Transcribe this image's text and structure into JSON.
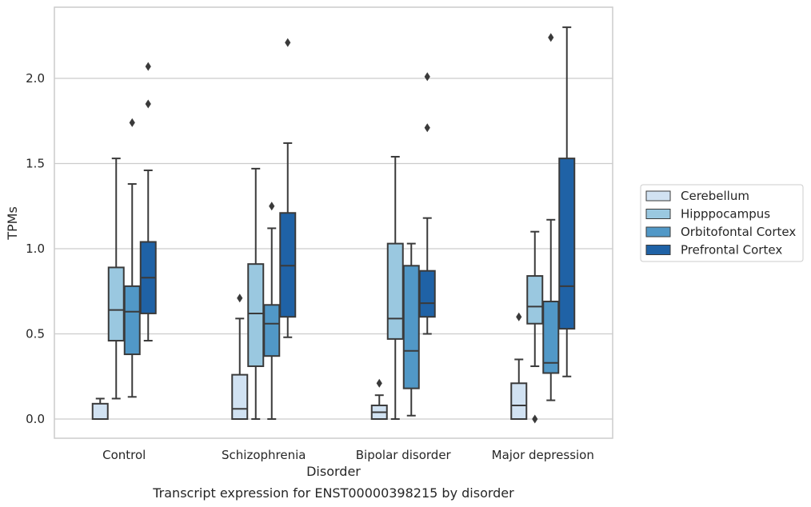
{
  "chart_data": {
    "type": "boxplot",
    "caption": "Transcript expression for ENST00000398215 by disorder",
    "xlabel": "Disorder",
    "ylabel": "TPMs",
    "ylim": [
      -0.11,
      2.41
    ],
    "yticks": [
      "0.0",
      "0.5",
      "1.0",
      "1.5",
      "2.0"
    ],
    "grid": "horizontal",
    "legend_position": "right",
    "categories": [
      "Control",
      "Schizophrenia",
      "Bipolar disorder",
      "Major depression"
    ],
    "series": [
      {
        "name": "Cerebellum",
        "color": "#d1e2f2",
        "boxes": [
          {
            "whislo": 0.0,
            "q1": 0.0,
            "med": 0.0,
            "q3": 0.09,
            "whishi": 0.12,
            "fliers": []
          },
          {
            "whislo": 0.0,
            "q1": 0.0,
            "med": 0.06,
            "q3": 0.26,
            "whishi": 0.59,
            "fliers": [
              0.71
            ]
          },
          {
            "whislo": 0.0,
            "q1": 0.0,
            "med": 0.04,
            "q3": 0.08,
            "whishi": 0.14,
            "fliers": [
              0.21
            ]
          },
          {
            "whislo": 0.0,
            "q1": 0.0,
            "med": 0.08,
            "q3": 0.21,
            "whishi": 0.35,
            "fliers": [
              0.6
            ]
          }
        ]
      },
      {
        "name": "Hipppocampus",
        "color": "#9ac8e0",
        "boxes": [
          {
            "whislo": 0.12,
            "q1": 0.46,
            "med": 0.64,
            "q3": 0.89,
            "whishi": 1.53,
            "fliers": []
          },
          {
            "whislo": 0.0,
            "q1": 0.31,
            "med": 0.62,
            "q3": 0.91,
            "whishi": 1.47,
            "fliers": []
          },
          {
            "whislo": 0.0,
            "q1": 0.47,
            "med": 0.59,
            "q3": 1.03,
            "whishi": 1.54,
            "fliers": []
          },
          {
            "whislo": 0.31,
            "q1": 0.56,
            "med": 0.66,
            "q3": 0.84,
            "whishi": 1.1,
            "fliers": [
              0.0
            ]
          }
        ]
      },
      {
        "name": "Orbitofontal Cortex",
        "color": "#5198c7",
        "boxes": [
          {
            "whislo": 0.13,
            "q1": 0.38,
            "med": 0.63,
            "q3": 0.78,
            "whishi": 1.38,
            "fliers": [
              1.74
            ]
          },
          {
            "whislo": 0.0,
            "q1": 0.37,
            "med": 0.56,
            "q3": 0.67,
            "whishi": 1.12,
            "fliers": [
              1.25
            ]
          },
          {
            "whislo": 0.02,
            "q1": 0.18,
            "med": 0.4,
            "q3": 0.9,
            "whishi": 1.03,
            "fliers": []
          },
          {
            "whislo": 0.11,
            "q1": 0.27,
            "med": 0.33,
            "q3": 0.69,
            "whishi": 1.17,
            "fliers": [
              2.24
            ]
          }
        ]
      },
      {
        "name": "Prefrontal Cortex",
        "color": "#1f62a6",
        "boxes": [
          {
            "whislo": 0.46,
            "q1": 0.62,
            "med": 0.83,
            "q3": 1.04,
            "whishi": 1.46,
            "fliers": [
              1.85,
              2.07
            ]
          },
          {
            "whislo": 0.48,
            "q1": 0.6,
            "med": 0.9,
            "q3": 1.21,
            "whishi": 1.62,
            "fliers": [
              2.21
            ]
          },
          {
            "whislo": 0.5,
            "q1": 0.6,
            "med": 0.68,
            "q3": 0.87,
            "whishi": 1.18,
            "fliers": [
              1.71,
              2.01
            ]
          },
          {
            "whislo": 0.25,
            "q1": 0.53,
            "med": 0.78,
            "q3": 1.53,
            "whishi": 2.3,
            "fliers": []
          }
        ]
      }
    ]
  }
}
